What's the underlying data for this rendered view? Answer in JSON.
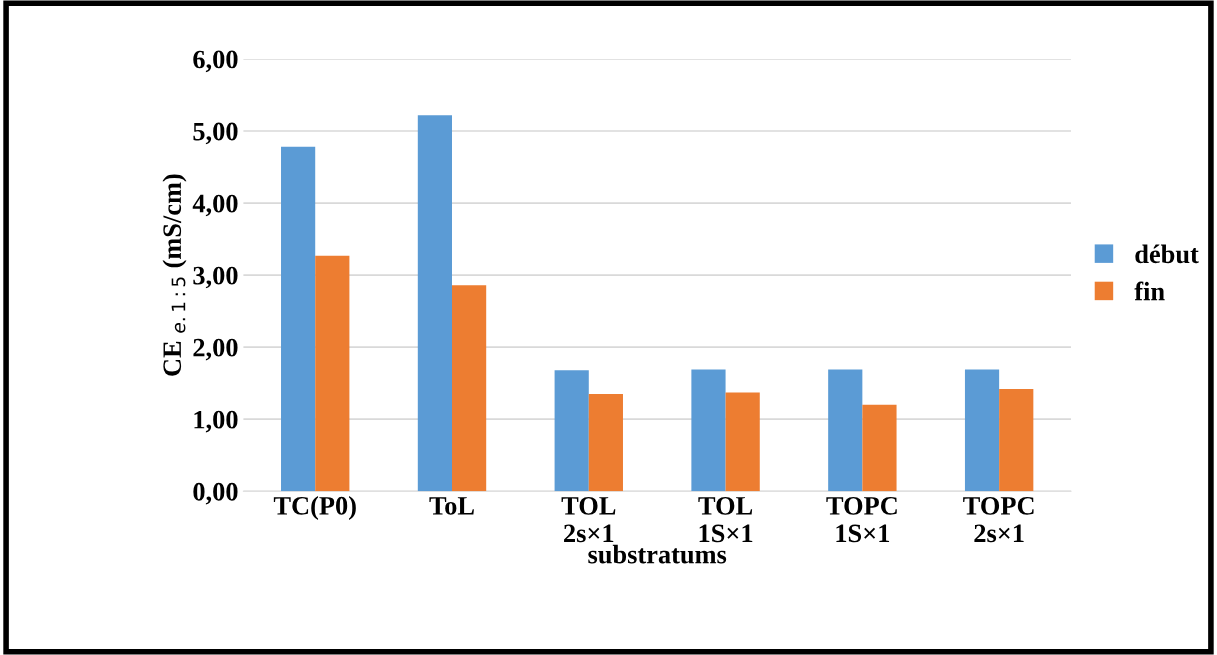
{
  "chart_data": {
    "type": "bar",
    "xlabel": "substratums",
    "ylabel": "CE $_{e.1:5}$ (mS/cm)",
    "categories": [
      "TC(P0)",
      "ToL",
      "TOL\n2s×1",
      "TOL\n1S×1",
      "TOPC\n1S×1",
      "TOPC\n2s×1"
    ],
    "series": [
      {
        "name": "début",
        "color": "#5b9bd5",
        "values": [
          4.78,
          5.22,
          1.68,
          1.69,
          1.69,
          1.69
        ]
      },
      {
        "name": "fin",
        "color": "#ed7d31",
        "values": [
          3.27,
          2.86,
          1.35,
          1.37,
          1.2,
          1.42
        ]
      }
    ],
    "ylim": [
      0,
      6
    ],
    "yticks": [
      {
        "value": 0,
        "label": "0,00"
      },
      {
        "value": 1,
        "label": "1,00"
      },
      {
        "value": 2,
        "label": "2,00"
      },
      {
        "value": 3,
        "label": "3,00"
      },
      {
        "value": 4,
        "label": "4,00"
      },
      {
        "value": 5,
        "label": "5,00"
      },
      {
        "value": 6,
        "label": "6,00"
      }
    ],
    "grid": "y",
    "legend": "right"
  }
}
